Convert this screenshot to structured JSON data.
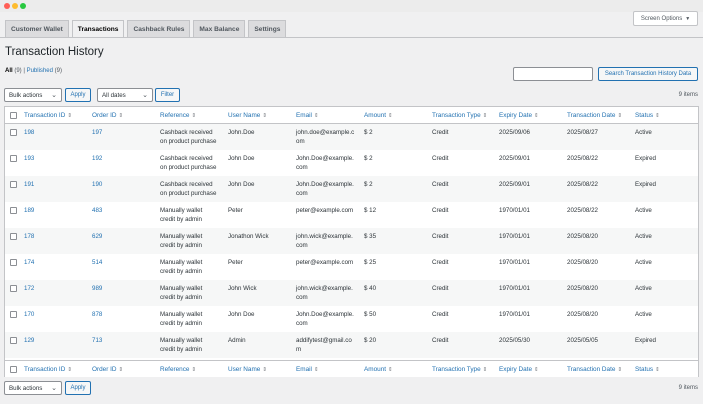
{
  "window": {
    "controls": [
      "close",
      "minimize",
      "zoom"
    ]
  },
  "screen_options": {
    "label": "Screen Options",
    "icon": "caret-down-icon"
  },
  "tabs": [
    {
      "label": "Customer Wallet",
      "active": false
    },
    {
      "label": "Transactions",
      "active": true
    },
    {
      "label": "Cashback Rules",
      "active": false
    },
    {
      "label": "Max Balance",
      "active": false
    },
    {
      "label": "Settings",
      "active": false
    }
  ],
  "page": {
    "title": "Transaction History"
  },
  "views": {
    "all_label": "All",
    "all_count": "(9)",
    "separator": "|",
    "published_label": "Published",
    "published_count": "(9)"
  },
  "search": {
    "placeholder": "",
    "value": "",
    "button_label": "Search Transaction History Data"
  },
  "top_actions": {
    "bulk_label": "Bulk actions",
    "apply_label": "Apply",
    "dates_label": "All dates",
    "filter_label": "Filter",
    "items": "9 items"
  },
  "bottom_actions": {
    "bulk_label": "Bulk actions",
    "apply_label": "Apply",
    "items": "9 items"
  },
  "columns": [
    "Transaction ID",
    "Order ID",
    "Reference",
    "User Name",
    "Email",
    "Amount",
    "Transaction Type",
    "Expiry Date",
    "Transaction Date",
    "Status"
  ],
  "sort_icon": "sort-arrows-icon",
  "rows": [
    {
      "transaction_id": "198",
      "order_id": "197",
      "reference_1": "Cashback received",
      "reference_2": "on product purchase",
      "user_name": "John.Doe",
      "email_1": "john.doe@example.c",
      "email_2": "om",
      "amount": "$ 2",
      "type": "Credit",
      "expiry": "2025/09/06",
      "date": "2025/08/27",
      "status": "Active"
    },
    {
      "transaction_id": "193",
      "order_id": "192",
      "reference_1": "Cashback received",
      "reference_2": "on product purchase",
      "user_name": "John Doe",
      "email_1": "John.Doe@example.",
      "email_2": "com",
      "amount": "$ 2",
      "type": "Credit",
      "expiry": "2025/09/01",
      "date": "2025/08/22",
      "status": "Expired"
    },
    {
      "transaction_id": "191",
      "order_id": "190",
      "reference_1": "Cashback received",
      "reference_2": "on product purchase",
      "user_name": "John Doe",
      "email_1": "John.Doe@example.",
      "email_2": "com",
      "amount": "$ 2",
      "type": "Credit",
      "expiry": "2025/09/01",
      "date": "2025/08/22",
      "status": "Expired"
    },
    {
      "transaction_id": "189",
      "order_id": "483",
      "reference_1": "Manually wallet",
      "reference_2": "credit by admin",
      "user_name": "Peter",
      "email_1": "peter@example.com",
      "email_2": "",
      "amount": "$ 12",
      "type": "Credit",
      "expiry": "1970/01/01",
      "date": "2025/08/22",
      "status": "Active"
    },
    {
      "transaction_id": "178",
      "order_id": "629",
      "reference_1": "Manually wallet",
      "reference_2": "credit by admin",
      "user_name": "Jonathon Wick",
      "email_1": "john.wick@example.",
      "email_2": "com",
      "amount": "$ 35",
      "type": "Credit",
      "expiry": "1970/01/01",
      "date": "2025/08/20",
      "status": "Active"
    },
    {
      "transaction_id": "174",
      "order_id": "514",
      "reference_1": "Manually wallet",
      "reference_2": "credit by admin",
      "user_name": "Peter",
      "email_1": "peter@example.com",
      "email_2": "",
      "amount": "$ 25",
      "type": "Credit",
      "expiry": "1970/01/01",
      "date": "2025/08/20",
      "status": "Active"
    },
    {
      "transaction_id": "172",
      "order_id": "989",
      "reference_1": "Manually wallet",
      "reference_2": "credit by admin",
      "user_name": "John Wick",
      "email_1": "john.wick@example.",
      "email_2": "com",
      "amount": "$ 40",
      "type": "Credit",
      "expiry": "1970/01/01",
      "date": "2025/08/20",
      "status": "Active"
    },
    {
      "transaction_id": "170",
      "order_id": "878",
      "reference_1": "Manually wallet",
      "reference_2": "credit by admin",
      "user_name": "John Doe",
      "email_1": "John.Doe@example.",
      "email_2": "com",
      "amount": "$ 50",
      "type": "Credit",
      "expiry": "1970/01/01",
      "date": "2025/08/20",
      "status": "Active"
    },
    {
      "transaction_id": "129",
      "order_id": "713",
      "reference_1": "Manually wallet",
      "reference_2": "credit by admin",
      "user_name": "Admin",
      "email_1": "addifytest@gmail.co",
      "email_2": "m",
      "amount": "$ 20",
      "type": "Credit",
      "expiry": "2025/05/30",
      "date": "2025/05/05",
      "status": "Expired"
    }
  ]
}
